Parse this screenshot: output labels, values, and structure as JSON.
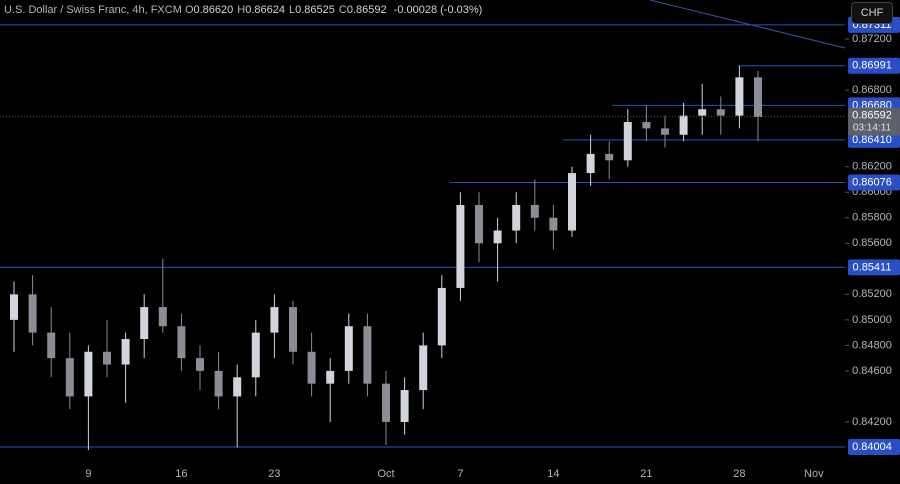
{
  "chart_data": {
    "type": "candlestick",
    "title": "U.S. Dollar / Swiss Franc, 4h, FXCM",
    "ohlc_header": [
      {
        "key": "O",
        "text": "0.86620"
      },
      {
        "key": "H",
        "text": "0.86624"
      },
      {
        "key": "L",
        "text": "0.86525"
      },
      {
        "key": "C",
        "text": "0.86592"
      }
    ],
    "change": "-0.00028 (-0.03%)",
    "currency_button": "CHF",
    "categories": [
      null,
      null,
      null,
      null,
      "9",
      null,
      null,
      null,
      null,
      "16",
      null,
      null,
      null,
      null,
      "23",
      null,
      null,
      null,
      null,
      null,
      "Oct",
      null,
      null,
      null,
      "7",
      null,
      null,
      null,
      null,
      "14",
      null,
      null,
      null,
      null,
      "21",
      null,
      null,
      null,
      null,
      "28",
      null,
      null,
      null,
      "Nov"
    ],
    "open": [
      0.85,
      0.852,
      0.849,
      0.847,
      0.844,
      0.8475,
      0.8465,
      0.8485,
      0.851,
      0.8495,
      0.847,
      0.846,
      0.844,
      0.8455,
      0.849,
      0.851,
      0.8475,
      0.845,
      0.846,
      0.8495,
      0.845,
      0.842,
      0.8445,
      0.848,
      0.8525,
      0.859,
      0.856,
      0.857,
      0.859,
      0.858,
      0.857,
      0.8615,
      0.863,
      0.8625,
      0.8655,
      0.865,
      0.8645,
      0.866,
      0.8665,
      0.866,
      0.869,
      null,
      null,
      null
    ],
    "high": [
      0.853,
      0.8535,
      0.851,
      0.849,
      0.848,
      0.85,
      0.849,
      0.852,
      0.8548,
      0.8505,
      0.848,
      0.8475,
      0.8465,
      0.85,
      0.852,
      0.8515,
      0.849,
      0.847,
      0.8505,
      0.8505,
      0.846,
      0.8455,
      0.849,
      0.8535,
      0.86,
      0.86,
      0.858,
      0.86,
      0.861,
      0.859,
      0.862,
      0.8645,
      0.864,
      0.8665,
      0.8668,
      0.866,
      0.867,
      0.8685,
      0.8675,
      0.8699,
      0.8695,
      null,
      null,
      null
    ],
    "low": [
      0.8475,
      0.848,
      0.8455,
      0.843,
      0.8398,
      0.8455,
      0.8435,
      0.847,
      0.849,
      0.846,
      0.8445,
      0.843,
      0.84,
      0.844,
      0.847,
      0.8465,
      0.844,
      0.842,
      0.845,
      0.844,
      0.8402,
      0.841,
      0.843,
      0.847,
      0.8515,
      0.8545,
      0.853,
      0.856,
      0.857,
      0.8555,
      0.8565,
      0.8605,
      0.861,
      0.862,
      0.864,
      0.8635,
      0.864,
      0.8645,
      0.8645,
      0.865,
      0.864,
      null,
      null,
      null
    ],
    "close": [
      0.852,
      0.849,
      0.847,
      0.844,
      0.8475,
      0.8465,
      0.8485,
      0.851,
      0.8495,
      0.847,
      0.846,
      0.844,
      0.8455,
      0.849,
      0.851,
      0.8475,
      0.845,
      0.846,
      0.8495,
      0.845,
      0.842,
      0.8445,
      0.848,
      0.8525,
      0.859,
      0.856,
      0.857,
      0.859,
      0.858,
      0.857,
      0.8615,
      0.863,
      0.8625,
      0.8655,
      0.865,
      0.8645,
      0.866,
      0.8665,
      0.866,
      0.869,
      0.8659,
      null,
      null,
      null
    ],
    "up_color": "#d1d4dc",
    "down_color": "#8a8d96",
    "level_color": "#2a4fc4",
    "levels": [
      {
        "value": 0.87311,
        "label": "0.87311"
      },
      {
        "value": 0.86991,
        "label": "0.86991"
      },
      {
        "value": 0.8668,
        "label": "0.86680"
      },
      {
        "value": 0.8641,
        "label": "0.86410"
      },
      {
        "value": 0.86076,
        "label": "0.86076"
      },
      {
        "value": 0.85411,
        "label": "0.85411"
      },
      {
        "value": 0.84004,
        "label": "0.84004"
      }
    ],
    "current_price": {
      "value": 0.86592,
      "label": "0.86592"
    },
    "countdown": "03:14:11",
    "ylim": [
      0.83902,
      0.87506
    ],
    "yticks": [
      {
        "value": 0.872,
        "label": "0.87200"
      },
      {
        "value": 0.868,
        "label": "0.86800"
      },
      {
        "value": 0.862,
        "label": "0.86200"
      },
      {
        "value": 0.86,
        "label": "0.86000"
      },
      {
        "value": 0.858,
        "label": "0.85800"
      },
      {
        "value": 0.856,
        "label": "0.85600"
      },
      {
        "value": 0.852,
        "label": "0.85200"
      },
      {
        "value": 0.85,
        "label": "0.85000"
      },
      {
        "value": 0.848,
        "label": "0.84800"
      },
      {
        "value": 0.846,
        "label": "0.84600"
      },
      {
        "value": 0.842,
        "label": "0.84200"
      }
    ]
  }
}
